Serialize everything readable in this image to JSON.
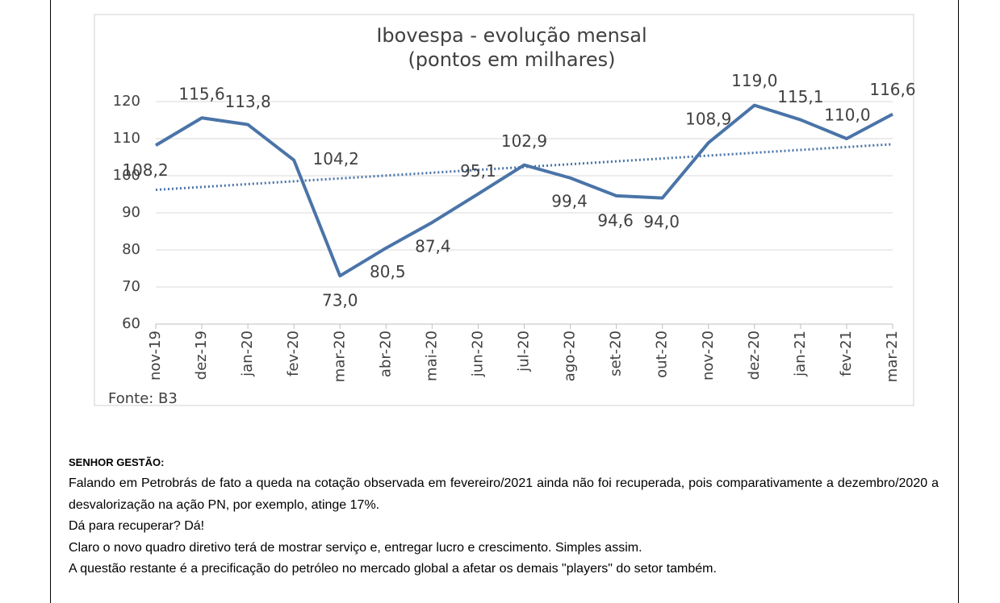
{
  "chart_data": {
    "type": "line",
    "title": "Ibovespa - evolução mensal",
    "subtitle": "(pontos em milhares)",
    "source": "Fonte: B3",
    "categories": [
      "nov-19",
      "dez-19",
      "jan-20",
      "fev-20",
      "mar-20",
      "abr-20",
      "mai-20",
      "jun-20",
      "jul-20",
      "ago-20",
      "set-20",
      "out-20",
      "nov-20",
      "dez-20",
      "jan-21",
      "fev-21",
      "mar-21"
    ],
    "series": [
      {
        "color": "#4a74a8",
        "values": [
          108.2,
          115.6,
          113.8,
          104.2,
          73.0,
          80.5,
          87.4,
          95.1,
          102.9,
          99.4,
          94.6,
          94.0,
          108.9,
          119.0,
          115.1,
          110.0,
          116.6
        ],
        "value_labels": [
          "108,2",
          "115,6",
          "113,8",
          "104,2",
          "73,0",
          "80,5",
          "87,4",
          "95,1",
          "102,9",
          "99,4",
          "94,6",
          "94,0",
          "108,9",
          "119,0",
          "115,1",
          "110,0",
          "116,6"
        ]
      }
    ],
    "trendline": {
      "color": "#4a74a8",
      "style": "dotted",
      "values": [
        96.2,
        108.5
      ]
    },
    "ylim": [
      60,
      120
    ],
    "yticks": [
      60,
      70,
      80,
      90,
      100,
      110,
      120
    ],
    "grid": true
  },
  "section": {
    "heading": "SENHOR GESTÃO:",
    "paragraphs": [
      "Falando em Petrobrás de fato a queda na cotação observada em fevereiro/2021 ainda não foi recuperada, pois comparativamente a dezembro/2020 a desvalorização na ação PN, por exemplo, atinge 17%.",
      "Dá para recuperar? Dá!",
      "Claro o novo quadro diretivo terá de mostrar serviço e, entregar lucro e crescimento. Simples assim.",
      "A questão restante é a precificação do petróleo no mercado global a afetar os demais \"players\" do setor também."
    ]
  }
}
